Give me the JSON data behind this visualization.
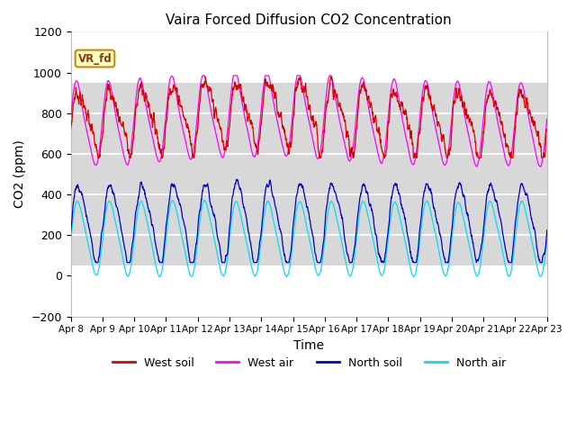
{
  "title": "Vaira Forced Diffusion CO2 Concentration",
  "xlabel": "Time",
  "ylabel": "CO2 (ppm)",
  "ylim": [
    -200,
    1200
  ],
  "num_days": 15,
  "n_points": 2000,
  "bg_color": "#f0f0f0",
  "grid_color": "white",
  "label_box_text": "VR_fd",
  "label_box_bg": "#ffffcc",
  "label_box_border": "#cc8800",
  "west_soil_color": "#dd0000",
  "west_air_color": "#ff00ff",
  "north_soil_color": "#0000cc",
  "north_air_color": "#00ddff",
  "tick_labels": [
    "Apr 8",
    "Apr 9",
    "Apr 10",
    "Apr 11",
    "Apr 12",
    "Apr 13",
    "Apr 14",
    "Apr 15",
    "Apr 16",
    "Apr 17",
    "Apr 18",
    "Apr 19",
    "Apr 20",
    "Apr 21",
    "Apr 22",
    "Apr 23"
  ],
  "ws_base": 760,
  "ws_amp": 145,
  "ws_noise": 40,
  "wa_base": 740,
  "wa_amp": 195,
  "wa_noise": 20,
  "ns_base": 265,
  "ns_amp": 185,
  "ns_noise": 25,
  "na_base": 185,
  "na_amp": 175,
  "na_noise": 18
}
